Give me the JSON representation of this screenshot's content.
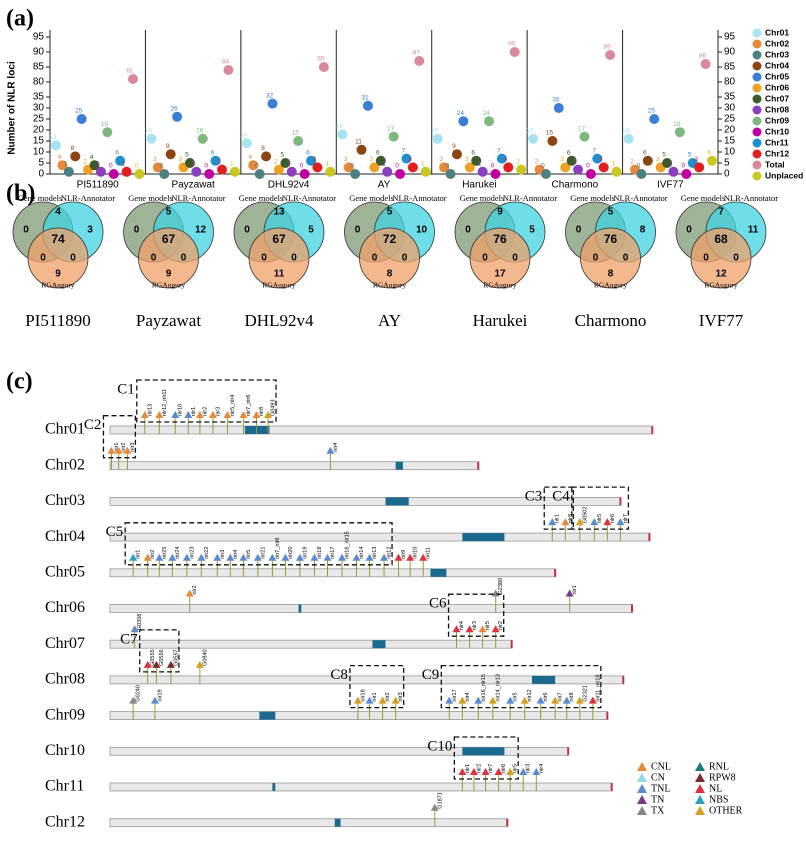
{
  "panels": [
    "(a)",
    "(b)",
    "(c)"
  ],
  "chart_data": {
    "type": "dot",
    "ylabel": "Number of NLR loci",
    "categories": [
      "PI511890",
      "Payzawat",
      "DHL92v4",
      "AY",
      "Harukei",
      "Charmono",
      "IVF77"
    ],
    "ylim": [
      0,
      95
    ],
    "axis_break": [
      35,
      80
    ],
    "yticks": [
      0,
      5,
      10,
      15,
      20,
      25,
      30,
      35,
      80,
      85,
      90,
      95
    ],
    "series": [
      {
        "name": "Chr01",
        "color": "#a8e4f0",
        "values": [
          13,
          16,
          14,
          18,
          16,
          16,
          16
        ]
      },
      {
        "name": "Chr02",
        "color": "#e8883a",
        "values": [
          4,
          3,
          4,
          3,
          3,
          2,
          2
        ]
      },
      {
        "name": "Chr03",
        "color": "#4d8080",
        "values": [
          1,
          0,
          0,
          0,
          0,
          0,
          0
        ]
      },
      {
        "name": "Chr04",
        "color": "#8b4513",
        "values": [
          8,
          9,
          8,
          11,
          9,
          15,
          6
        ]
      },
      {
        "name": "Chr05",
        "color": "#3a7fd5",
        "values": [
          25,
          26,
          32,
          31,
          24,
          30,
          25
        ]
      },
      {
        "name": "Chr06",
        "color": "#f0a020",
        "values": [
          2,
          3,
          2,
          3,
          3,
          3,
          3
        ]
      },
      {
        "name": "Chr07",
        "color": "#3d5a2a",
        "values": [
          4,
          5,
          5,
          6,
          6,
          6,
          5
        ]
      },
      {
        "name": "Chr08",
        "color": "#8b3fbf",
        "values": [
          1,
          1,
          1,
          1,
          1,
          2,
          1
        ]
      },
      {
        "name": "Chr09",
        "color": "#7fb87f",
        "values": [
          19,
          16,
          15,
          17,
          24,
          17,
          19
        ]
      },
      {
        "name": "Chr10",
        "color": "#c000a0",
        "values": [
          0,
          0,
          0,
          0,
          0,
          0,
          0
        ]
      },
      {
        "name": "Chr11",
        "color": "#1e90d0",
        "values": [
          6,
          6,
          6,
          7,
          7,
          7,
          5
        ]
      },
      {
        "name": "Chr12",
        "color": "#e02020",
        "values": [
          1,
          2,
          3,
          3,
          3,
          3,
          3
        ]
      },
      {
        "name": "Total",
        "color": "#d88a9a",
        "values": [
          81,
          84,
          85,
          87,
          90,
          89,
          86
        ]
      },
      {
        "name": "Unplaced",
        "color": "#c8c820",
        "values": [
          0,
          1,
          1,
          1,
          2,
          1,
          6
        ]
      }
    ]
  },
  "venn": {
    "set_labels": [
      "Gene models",
      "NLR-Annotator",
      "RGAugury"
    ],
    "colors": [
      "#7d9a74",
      "#3fd3e0",
      "#f0a06a"
    ],
    "counts": [
      {
        "a": 0,
        "ab": 4,
        "b": 3,
        "abc": 74,
        "ac": 0,
        "bc": 0,
        "c": 9
      },
      {
        "a": 0,
        "ab": 5,
        "b": 12,
        "abc": 67,
        "ac": 0,
        "bc": 0,
        "c": 9
      },
      {
        "a": 0,
        "ab": 13,
        "b": 5,
        "abc": 67,
        "ac": 0,
        "bc": 0,
        "c": 11
      },
      {
        "a": 0,
        "ab": 5,
        "b": 10,
        "abc": 72,
        "ac": 0,
        "bc": 0,
        "c": 8
      },
      {
        "a": 0,
        "ab": 9,
        "b": 5,
        "abc": 76,
        "ac": 0,
        "bc": 0,
        "c": 17
      },
      {
        "a": 0,
        "ab": 5,
        "b": 8,
        "abc": 76,
        "ac": 0,
        "bc": 0,
        "c": 8
      },
      {
        "a": 0,
        "ab": 7,
        "b": 11,
        "abc": 68,
        "ac": 0,
        "bc": 0,
        "c": 12
      }
    ]
  },
  "chromosome_map": {
    "types": [
      {
        "name": "CNL",
        "color": "#e8883a"
      },
      {
        "name": "CN",
        "color": "#8ad8e8"
      },
      {
        "name": "TNL",
        "color": "#5a8ad0"
      },
      {
        "name": "TN",
        "color": "#7a3a8a"
      },
      {
        "name": "TX",
        "color": "#888888"
      },
      {
        "name": "RNL",
        "color": "#1a7a80"
      },
      {
        "name": "RPW8",
        "color": "#7a2a2a"
      },
      {
        "name": "NL",
        "color": "#e03040"
      },
      {
        "name": "NBS",
        "color": "#2aa0c0"
      },
      {
        "name": "OTHER",
        "color": "#d4a020"
      }
    ],
    "chromosomes": [
      {
        "name": "Chr01",
        "length": 37.4,
        "centromere": [
          9.3,
          11.0
        ],
        "genes": [
          {
            "label": "nlr13",
            "pos": 2.4,
            "type": "CNL"
          },
          {
            "label": "nlr12_nlr11",
            "pos": 3.4,
            "type": "CNL"
          },
          {
            "label": "nlr10",
            "pos": 4.5,
            "type": "TNL"
          },
          {
            "label": "nlr1",
            "pos": 5.4,
            "type": "TNL"
          },
          {
            "label": "nlr2",
            "pos": 6.2,
            "type": "CNL"
          },
          {
            "label": "nlr3",
            "pos": 7.1,
            "type": "CNL"
          },
          {
            "label": "nlr5_nlr4",
            "pos": 8.1,
            "type": "CNL"
          },
          {
            "label": "nlr7_nlr6",
            "pos": 9.2,
            "type": "CNL"
          },
          {
            "label": "nlr8",
            "pos": 10.1,
            "type": "CNL"
          },
          {
            "label": "G0493",
            "pos": 10.9,
            "type": "OTHER"
          }
        ]
      },
      {
        "name": "Chr02",
        "length": 25.4,
        "centromere": [
          19.7,
          20.2
        ],
        "genes": [
          {
            "label": "nlr1",
            "pos": 0.1,
            "type": "CNL"
          },
          {
            "label": "nlr2",
            "pos": 0.6,
            "type": "CNL"
          },
          {
            "label": "nlr3",
            "pos": 1.2,
            "type": "CNL"
          },
          {
            "label": "nlr4",
            "pos": 15.2,
            "type": "TNL"
          }
        ]
      },
      {
        "name": "Chr03",
        "length": 35.2,
        "centromere": [
          19.0,
          20.6
        ],
        "genes": []
      },
      {
        "name": "Chr04",
        "length": 37.2,
        "centromere": [
          24.3,
          27.2
        ],
        "genes": [
          {
            "label": "nlr1",
            "pos": 30.5,
            "type": "TNL"
          },
          {
            "label": "nlr8",
            "pos": 31.4,
            "type": "CNL"
          },
          {
            "label": "G0502",
            "pos": 32.4,
            "type": "OTHER"
          },
          {
            "label": "nlr5",
            "pos": 33.4,
            "type": "TNL"
          },
          {
            "label": "nlr6",
            "pos": 34.3,
            "type": "NL"
          },
          {
            "label": "nlr7",
            "pos": 35.2,
            "type": "TNL"
          }
        ]
      },
      {
        "name": "Chr05",
        "length": 30.7,
        "centromere": [
          22.1,
          23.2
        ],
        "genes": [
          {
            "label": "nlr1",
            "pos": 1.6,
            "type": "NBS"
          },
          {
            "label": "nlr2",
            "pos": 2.6,
            "type": "CNL"
          },
          {
            "label": "nlr25",
            "pos": 3.4,
            "type": "TNL"
          },
          {
            "label": "nlr24",
            "pos": 4.3,
            "type": "TNL"
          },
          {
            "label": "nlr23",
            "pos": 5.3,
            "type": "TNL"
          },
          {
            "label": "nlr22",
            "pos": 6.3,
            "type": "TNL"
          },
          {
            "label": "nlr3",
            "pos": 7.4,
            "type": "TNL"
          },
          {
            "label": "nlr4",
            "pos": 8.3,
            "type": "TNL"
          },
          {
            "label": "nlr5",
            "pos": 9.2,
            "type": "TNL"
          },
          {
            "label": "nlr21",
            "pos": 10.2,
            "type": "TNL"
          },
          {
            "label": "nlr7_nlr6",
            "pos": 11.2,
            "type": "TNL"
          },
          {
            "label": "nlr20",
            "pos": 12.1,
            "type": "TNL"
          },
          {
            "label": "nlr19",
            "pos": 13.1,
            "type": "TNL"
          },
          {
            "label": "nlr18",
            "pos": 14.1,
            "type": "TNL"
          },
          {
            "label": "nlr17",
            "pos": 15.0,
            "type": "TNL"
          },
          {
            "label": "nlr16_nlr15",
            "pos": 16.0,
            "type": "TNL"
          },
          {
            "label": "nlr14",
            "pos": 17.0,
            "type": "TNL"
          },
          {
            "label": "nlr13",
            "pos": 17.9,
            "type": "TNL"
          },
          {
            "label": "nlr12",
            "pos": 18.9,
            "type": "TNL"
          },
          {
            "label": "nlr9",
            "pos": 19.9,
            "type": "NL"
          },
          {
            "label": "nlr10",
            "pos": 20.7,
            "type": "NL"
          },
          {
            "label": "nlr11",
            "pos": 21.6,
            "type": "NL"
          }
        ]
      },
      {
        "name": "Chr06",
        "length": 36.0,
        "centromere": [
          13.0,
          13.2
        ],
        "genes": [
          {
            "label": "nlr2",
            "pos": 5.5,
            "type": "CNL"
          },
          {
            "label": "G2380",
            "pos": 26.6,
            "type": "TX"
          },
          {
            "label": "nlr1",
            "pos": 31.7,
            "type": "TN"
          }
        ]
      },
      {
        "name": "Chr07",
        "length": 27.7,
        "centromere": [
          18.1,
          19.0
        ],
        "genes": [
          {
            "label": "G0358",
            "pos": 1.7,
            "type": "TNL"
          },
          {
            "label": "nlr4",
            "pos": 23.9,
            "type": "NL"
          },
          {
            "label": "nlr3",
            "pos": 24.8,
            "type": "NL"
          },
          {
            "label": "nlr5",
            "pos": 25.7,
            "type": "CNL"
          },
          {
            "label": "nlr2",
            "pos": 26.6,
            "type": "NL"
          }
        ]
      },
      {
        "name": "Chr08",
        "length": 35.4,
        "centromere": [
          29.1,
          30.7
        ],
        "genes": [
          {
            "label": "G0555",
            "pos": 2.6,
            "type": "NL"
          },
          {
            "label": "G0556",
            "pos": 3.2,
            "type": "RPW8"
          },
          {
            "label": "G0557",
            "pos": 4.2,
            "type": "RPW8"
          },
          {
            "label": "G0940",
            "pos": 6.2,
            "type": "OTHER"
          }
        ]
      },
      {
        "name": "Chr09",
        "length": 34.3,
        "centromere": [
          10.3,
          11.4
        ],
        "genes": [
          {
            "label": "G0240",
            "pos": 1.6,
            "type": "TX"
          },
          {
            "label": "nlr19",
            "pos": 3.1,
            "type": "TNL"
          },
          {
            "label": "nlr18",
            "pos": 17.1,
            "type": "OTHER"
          },
          {
            "label": "nlr1",
            "pos": 17.9,
            "type": "TNL"
          },
          {
            "label": "nlr2",
            "pos": 18.8,
            "type": "OTHER"
          },
          {
            "label": "nlr3",
            "pos": 19.7,
            "type": "OTHER"
          },
          {
            "label": "nlr17",
            "pos": 23.4,
            "type": "TNL"
          },
          {
            "label": "nlr4",
            "pos": 24.3,
            "type": "OTHER"
          },
          {
            "label": "nlr16_nlr15",
            "pos": 25.4,
            "type": "TNL"
          },
          {
            "label": "nlr14_nlr13",
            "pos": 26.4,
            "type": "OTHER"
          },
          {
            "label": "nlr5",
            "pos": 27.6,
            "type": "TNL"
          },
          {
            "label": "nlr12",
            "pos": 28.6,
            "type": "OTHER"
          },
          {
            "label": "nlr6",
            "pos": 29.7,
            "type": "TNL"
          },
          {
            "label": "nlr7",
            "pos": 30.7,
            "type": "OTHER"
          },
          {
            "label": "nlr8",
            "pos": 31.5,
            "type": "TNL"
          },
          {
            "label": "G2321",
            "pos": 32.4,
            "type": "OTHER"
          },
          {
            "label": "nlr11_nlr10",
            "pos": 33.3,
            "type": "NL"
          }
        ]
      },
      {
        "name": "Chr10",
        "length": 31.6,
        "centromere": [
          24.3,
          27.2
        ],
        "genes": []
      },
      {
        "name": "Chr11",
        "length": 34.6,
        "centromere": [
          11.2,
          11.4
        ],
        "genes": [
          {
            "label": "nlr1",
            "pos": 24.3,
            "type": "NL"
          },
          {
            "label": "nlr2",
            "pos": 25.1,
            "type": "NL"
          },
          {
            "label": "nlr7",
            "pos": 25.9,
            "type": "NL"
          },
          {
            "label": "nlr6",
            "pos": 26.8,
            "type": "NL"
          },
          {
            "label": "nlr5",
            "pos": 27.6,
            "type": "OTHER"
          },
          {
            "label": "nlr3",
            "pos": 28.5,
            "type": "TNL"
          },
          {
            "label": "nlr4",
            "pos": 29.4,
            "type": "TNL"
          }
        ]
      },
      {
        "name": "Chr12",
        "length": 27.4,
        "centromere": [
          15.5,
          15.9
        ],
        "genes": [
          {
            "label": "G1871",
            "pos": 22.4,
            "type": "TX"
          }
        ]
      }
    ],
    "clusters": [
      {
        "name": "C1",
        "chromosome": "Chr01",
        "range": [
          2.4,
          10.9
        ]
      },
      {
        "name": "C2",
        "chromosome": "Chr02",
        "range": [
          0.1,
          1.2
        ]
      },
      {
        "name": "C3",
        "chromosome": "Chr04",
        "range": [
          30.5,
          31.4
        ]
      },
      {
        "name": "C4",
        "chromosome": "Chr04",
        "range": [
          32.4,
          35.2
        ]
      },
      {
        "name": "C5",
        "chromosome": "Chr05",
        "range": [
          1.6,
          18.9
        ]
      },
      {
        "name": "C6",
        "chromosome": "Chr07",
        "range": [
          23.9,
          26.6
        ]
      },
      {
        "name": "C7",
        "chromosome": "Chr08",
        "range": [
          2.6,
          4.2
        ]
      },
      {
        "name": "C8",
        "chromosome": "Chr09",
        "range": [
          17.1,
          19.7
        ]
      },
      {
        "name": "C9",
        "chromosome": "Chr09",
        "range": [
          23.4,
          33.3
        ]
      },
      {
        "name": "C10",
        "chromosome": "Chr11",
        "range": [
          24.3,
          27.6
        ]
      }
    ]
  }
}
